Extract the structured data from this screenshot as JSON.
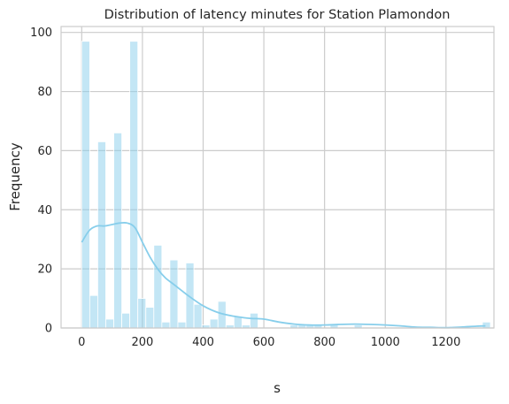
{
  "chart_data": {
    "type": "histogram",
    "title": "Distribution of latency minutes for Station Plamondon",
    "xlabel": "s",
    "ylabel": "Frequency",
    "xlim": [
      -68,
      1358
    ],
    "ylim": [
      0,
      102
    ],
    "xticks": [
      0,
      200,
      400,
      600,
      800,
      1000,
      1200
    ],
    "yticks": [
      0,
      20,
      40,
      60,
      80,
      100
    ],
    "grid": true,
    "bar_color": "#87ceeb",
    "kde_color": "#87ceeb",
    "bin_width": 26.4,
    "bins_start": 0,
    "counts": [
      97,
      11,
      63,
      3,
      66,
      5,
      97,
      10,
      7,
      28,
      2,
      23,
      2,
      22,
      8,
      1,
      3,
      9,
      1,
      4,
      1,
      5,
      0,
      0,
      0,
      0,
      1,
      1,
      1,
      1,
      0,
      1,
      0,
      0,
      1,
      0,
      0,
      0,
      0,
      0,
      0,
      0,
      0,
      0,
      0,
      0,
      0,
      0,
      0,
      0,
      2
    ],
    "kde": {
      "x": [
        0,
        25,
        50,
        75,
        100,
        125,
        150,
        175,
        200,
        225,
        250,
        275,
        300,
        325,
        350,
        400,
        450,
        500,
        550,
        600,
        650,
        700,
        750,
        800,
        850,
        900,
        950,
        1000,
        1050,
        1100,
        1150,
        1200,
        1250,
        1300,
        1330
      ],
      "y": [
        29,
        33,
        34.5,
        34.5,
        35,
        35.5,
        35.5,
        34,
        29,
        24,
        20,
        17,
        15,
        13,
        11,
        7.5,
        5.2,
        4,
        3.3,
        3,
        2,
        1.3,
        1,
        1,
        1.2,
        1.3,
        1.2,
        1,
        0.7,
        0.3,
        0.2,
        0.1,
        0.3,
        0.6,
        0.7
      ]
    }
  }
}
